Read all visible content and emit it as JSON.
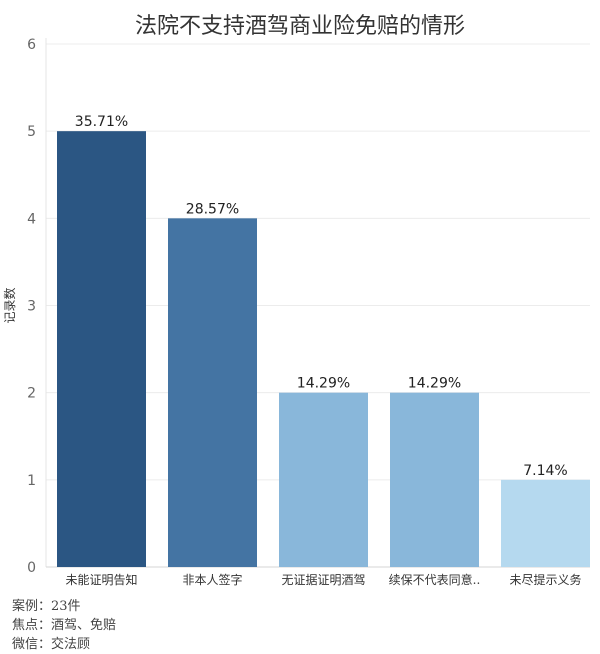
{
  "title": "法院不支持酒驾商业险免赔的情形",
  "chart_data": {
    "type": "bar",
    "categories": [
      "未能证明告知",
      "非本人签字",
      "无证据证明酒驾",
      "续保不代表同意..",
      "未尽提示义务"
    ],
    "values": [
      5,
      4,
      2,
      2,
      1
    ],
    "data_labels": [
      "35.71%",
      "28.57%",
      "14.29%",
      "14.29%",
      "7.14%"
    ],
    "colors": [
      "#2b5683",
      "#4474a3",
      "#89b7da",
      "#89b7da",
      "#b5d9ef"
    ],
    "ylabel": "记录数",
    "ylim": [
      0,
      6
    ],
    "yticks": [
      0,
      1,
      2,
      3,
      4,
      5,
      6
    ],
    "grid": true
  },
  "footer": {
    "line1": "案例：23件",
    "line2": "焦点：酒驾、免赔",
    "line3": "微信：交法顾"
  }
}
